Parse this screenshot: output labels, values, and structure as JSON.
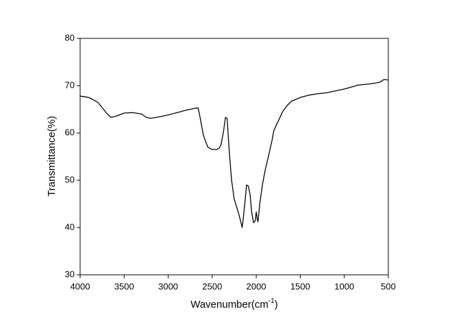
{
  "chart_data": {
    "type": "line",
    "x_label": [
      "Wavenumber(cm",
      "-1",
      ")"
    ],
    "y_label": "Transmittance(%)",
    "xlim": [
      4000,
      500
    ],
    "ylim": [
      30,
      80
    ],
    "xticks": [
      4000,
      3500,
      3000,
      2500,
      2000,
      1500,
      1000,
      500
    ],
    "yticks": [
      30,
      40,
      50,
      60,
      70,
      80
    ],
    "series": [
      {
        "color": "#000000",
        "x": [
          4000,
          3900,
          3800,
          3700,
          3650,
          3600,
          3500,
          3400,
          3300,
          3250,
          3200,
          3100,
          3000,
          2900,
          2800,
          2700,
          2660,
          2640,
          2600,
          2550,
          2500,
          2450,
          2420,
          2400,
          2370,
          2350,
          2330,
          2310,
          2280,
          2250,
          2200,
          2170,
          2160,
          2150,
          2130,
          2110,
          2090,
          2070,
          2050,
          2030,
          2010,
          2000,
          1990,
          1980,
          1960,
          1930,
          1900,
          1850,
          1820,
          1800,
          1750,
          1700,
          1650,
          1600,
          1500,
          1400,
          1300,
          1200,
          1100,
          1000,
          900,
          850,
          800,
          700,
          600,
          550,
          500
        ],
        "values": [
          67.8,
          67.5,
          66.5,
          64.2,
          63.3,
          63.5,
          64.2,
          64.3,
          64.0,
          63.3,
          63.1,
          63.4,
          63.8,
          64.3,
          64.8,
          65.2,
          65.3,
          63.5,
          59.5,
          57.0,
          56.5,
          56.5,
          56.8,
          57.5,
          60.5,
          63.3,
          63.0,
          57.0,
          50.0,
          46.0,
          43.0,
          40.8,
          40.0,
          41.5,
          45.0,
          49.0,
          48.8,
          47.0,
          43.0,
          41.0,
          41.5,
          43.3,
          42.0,
          41.2,
          45.0,
          49.0,
          52.0,
          56.0,
          58.5,
          60.5,
          62.5,
          64.5,
          65.8,
          66.7,
          67.5,
          68.0,
          68.3,
          68.5,
          68.9,
          69.3,
          69.8,
          70.1,
          70.2,
          70.4,
          70.7,
          71.3,
          71.2
        ]
      }
    ]
  }
}
